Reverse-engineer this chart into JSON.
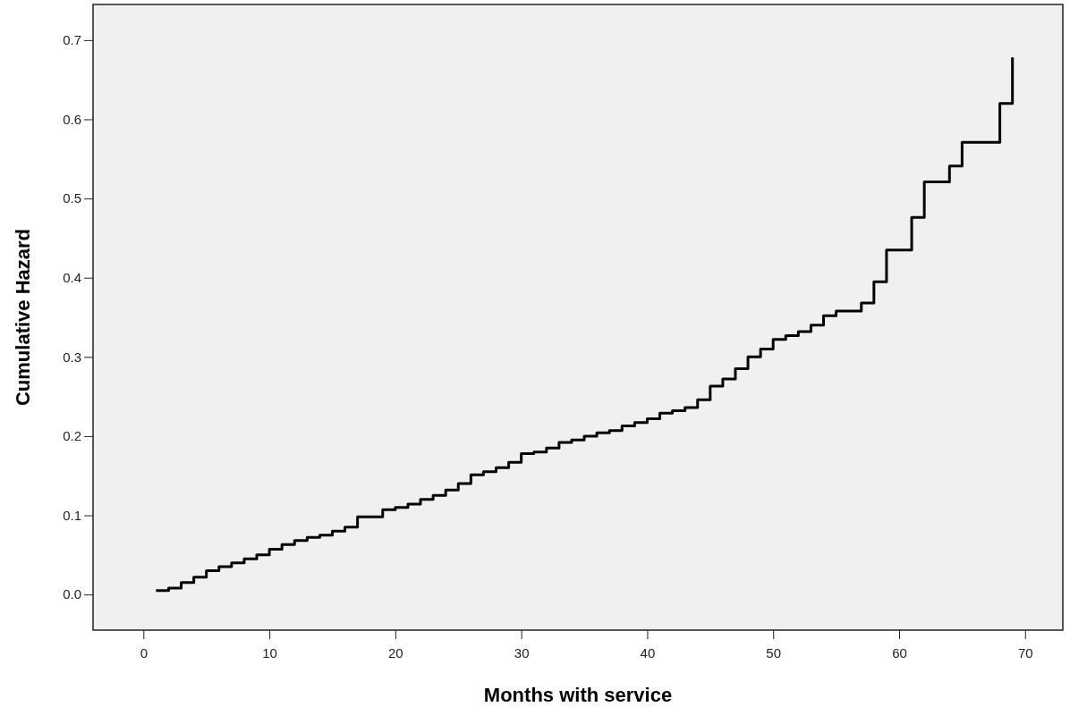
{
  "chart_data": {
    "type": "step",
    "xlabel": "Months with service",
    "ylabel": "Cumulative Hazard",
    "x": [
      1,
      2,
      3,
      4,
      5,
      6,
      7,
      8,
      9,
      10,
      11,
      12,
      13,
      14,
      15,
      16,
      17,
      18,
      19,
      20,
      21,
      22,
      23,
      24,
      25,
      26,
      27,
      28,
      29,
      30,
      31,
      32,
      33,
      34,
      35,
      36,
      37,
      38,
      39,
      40,
      41,
      42,
      43,
      44,
      45,
      46,
      47,
      48,
      49,
      50,
      51,
      52,
      53,
      54,
      55,
      56,
      57,
      58,
      59,
      60,
      61,
      62,
      63,
      64,
      65,
      66,
      67,
      68,
      69
    ],
    "series": [
      {
        "color": "#000000",
        "values": [
          0.005,
          0.008,
          0.015,
          0.022,
          0.03,
          0.035,
          0.04,
          0.045,
          0.05,
          0.057,
          0.063,
          0.068,
          0.072,
          0.075,
          0.08,
          0.085,
          0.098,
          0.098,
          0.107,
          0.11,
          0.114,
          0.12,
          0.125,
          0.132,
          0.14,
          0.151,
          0.155,
          0.16,
          0.167,
          0.178,
          0.18,
          0.185,
          0.192,
          0.195,
          0.2,
          0.204,
          0.207,
          0.213,
          0.217,
          0.222,
          0.229,
          0.232,
          0.236,
          0.246,
          0.263,
          0.272,
          0.285,
          0.3,
          0.31,
          0.322,
          0.327,
          0.332,
          0.34,
          0.352,
          0.358,
          0.358,
          0.368,
          0.395,
          0.435,
          0.435,
          0.476,
          0.521,
          0.521,
          0.541,
          0.571,
          0.571,
          0.571,
          0.62,
          0.678
        ]
      }
    ],
    "xlim": [
      -4,
      73
    ],
    "ylim": [
      -0.045,
      0.745
    ],
    "xticks": [
      0,
      10,
      20,
      30,
      40,
      50,
      60,
      70
    ],
    "yticks": [
      {
        "value": 0,
        "label": "0.0"
      },
      0.1,
      0.2,
      0.3,
      0.4,
      0.5,
      0.6,
      0.7
    ],
    "grid": false,
    "line_style": "solid"
  }
}
